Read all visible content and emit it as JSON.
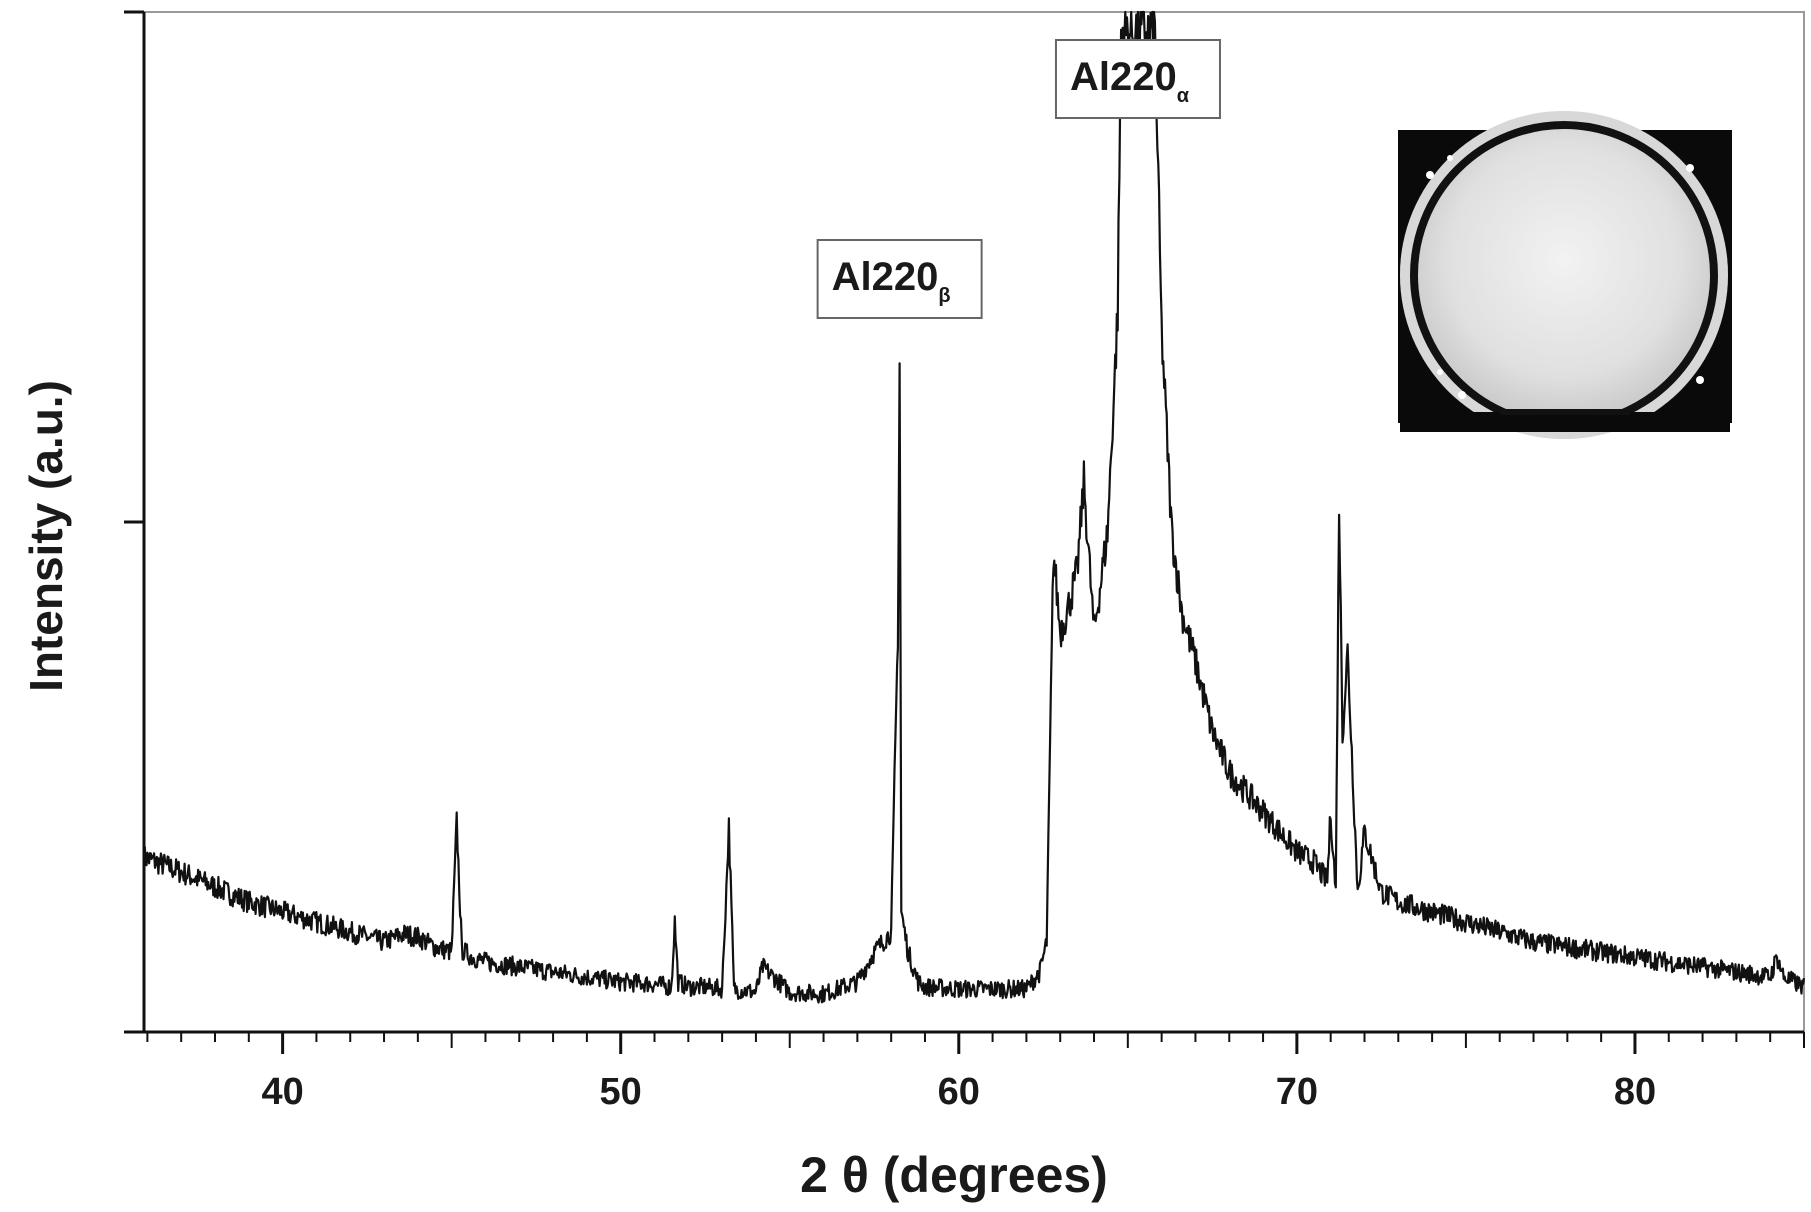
{
  "chart_data": {
    "type": "line",
    "title": "",
    "xlabel": "2 θ (degrees)",
    "ylabel": "Intensity (a.u.)",
    "xlim": [
      35.9,
      85
    ],
    "ylim": [
      0,
      100
    ],
    "x_ticks": [
      40,
      50,
      60,
      70,
      80
    ],
    "x_tick_labels": [
      "40",
      "50",
      "60",
      "70",
      "80"
    ],
    "y_tick_labels": [],
    "grid": false,
    "legend": "none",
    "line_color": "#111111",
    "series": [
      {
        "x": [
          35.9,
          37,
          38,
          39,
          40,
          41,
          42,
          43,
          43.6,
          44,
          44.5,
          45,
          45.15,
          45.3,
          45.6,
          46,
          47,
          48,
          49,
          50,
          51,
          51.5,
          51.6,
          51.7,
          52,
          52.5,
          53,
          53.2,
          53.35,
          53.5,
          54,
          54.2,
          55,
          56,
          57,
          57.5,
          58,
          58.2,
          58.25,
          58.3,
          58.5,
          58.8,
          59,
          60,
          61,
          62,
          62.4,
          62.6,
          62.8,
          63,
          63.2,
          63.5,
          63.7,
          64,
          64.4,
          64.7,
          64.8,
          65.8,
          66,
          66.3,
          66.6,
          67,
          67.5,
          68,
          68.5,
          69,
          69.5,
          70,
          70.5,
          70.9,
          71,
          71.15,
          71.25,
          71.35,
          71.5,
          71.8,
          72,
          72.5,
          73,
          74,
          75,
          76,
          77,
          78,
          79,
          80,
          81,
          82,
          83,
          84,
          84.2,
          84.4,
          85
        ],
        "y": [
          17.5,
          16,
          14.5,
          13,
          12,
          11,
          10,
          9,
          9.8,
          9.5,
          8.5,
          8,
          21,
          8.2,
          7.5,
          7,
          6.5,
          6,
          5.5,
          5,
          4.8,
          4.5,
          11,
          5,
          4.5,
          4.5,
          4.3,
          20.5,
          4.3,
          4.2,
          4,
          6.5,
          4,
          3.8,
          5,
          8,
          10,
          40,
          67,
          12,
          8,
          5,
          4.5,
          4.3,
          4.3,
          4.3,
          6,
          9,
          48,
          40,
          42,
          46,
          55,
          40,
          50,
          72,
          100,
          100,
          70,
          50,
          42,
          37,
          30,
          26,
          24,
          22,
          20,
          18,
          17,
          15,
          22,
          14,
          53,
          30,
          38,
          14,
          20,
          14,
          13,
          12,
          11,
          10,
          9,
          8.5,
          8,
          7.5,
          7,
          6.5,
          6,
          5.5,
          7.5,
          5.5,
          4.5
        ]
      }
    ]
  },
  "annotations": {
    "alpha_label": {
      "text": "Al220",
      "sub": "α",
      "x": 65.3
    },
    "beta_label": {
      "text": "Al220",
      "sub": "β",
      "x": 58.25
    }
  },
  "inset": {
    "description_icon": "wafer-photo-icon"
  }
}
